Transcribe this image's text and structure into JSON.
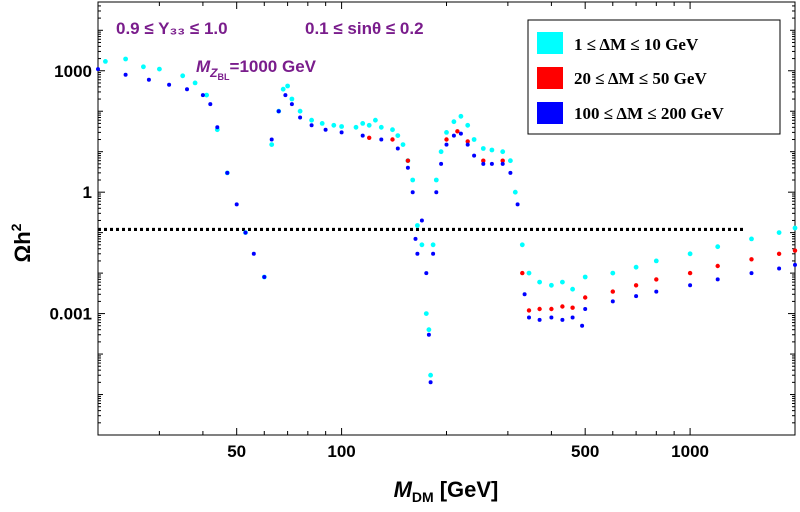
{
  "chart_data": {
    "type": "scatter",
    "title": "",
    "xlabel": "M",
    "xlabel_sub": "DM",
    "xlabel_unit": "[GeV]",
    "ylabel": "Ωh",
    "ylabel_sup": "2",
    "x_scale": "log",
    "y_scale": "log",
    "xlim": [
      20,
      2000
    ],
    "ylim": [
      1e-06,
      50000
    ],
    "x_ticks": [
      {
        "value": 50,
        "label": "50"
      },
      {
        "value": 100,
        "label": "100"
      },
      {
        "value": 500,
        "label": "500"
      },
      {
        "value": 1000,
        "label": "1000"
      }
    ],
    "y_ticks": [
      {
        "value": 1000,
        "label": "1000"
      },
      {
        "value": 1,
        "label": "1"
      },
      {
        "value": 0.001,
        "label": "0.001"
      }
    ],
    "reference_line": {
      "y": 0.12,
      "style": "dotted",
      "color": "#000000"
    },
    "annotations": {
      "line1_left": "0.9 ≤ Y₃₃ ≤ 1.0",
      "line1_right": "0.1 ≤ sinθ ≤ 0.2",
      "line2_prefix": "M",
      "line2_sub": "Z",
      "line2_subsub": "BL",
      "line2_value": "=1000 GeV",
      "color": "#7a1d8c"
    },
    "legend_position": "top-right",
    "series": [
      {
        "name": "1 ≤ ΔM ≤ 10 GeV",
        "color": "#00ffff",
        "points": [
          [
            21,
            1700
          ],
          [
            24,
            1950
          ],
          [
            27,
            1250
          ],
          [
            30,
            1100
          ],
          [
            35,
            750
          ],
          [
            38,
            500
          ],
          [
            41,
            250
          ],
          [
            44,
            35
          ],
          [
            47,
            3
          ],
          [
            53,
            0.1
          ],
          [
            60,
            0.008
          ],
          [
            63,
            15
          ],
          [
            66,
            100
          ],
          [
            68,
            350
          ],
          [
            70,
            420
          ],
          [
            72,
            200
          ],
          [
            76,
            100
          ],
          [
            82,
            60
          ],
          [
            88,
            50
          ],
          [
            95,
            45
          ],
          [
            100,
            42
          ],
          [
            110,
            40
          ],
          [
            115,
            50
          ],
          [
            120,
            45
          ],
          [
            125,
            60
          ],
          [
            130,
            40
          ],
          [
            140,
            35
          ],
          [
            145,
            25
          ],
          [
            150,
            15
          ],
          [
            155,
            6
          ],
          [
            160,
            2
          ],
          [
            165,
            0.15
          ],
          [
            170,
            0.05
          ],
          [
            175,
            0.001
          ],
          [
            178,
            0.0004
          ],
          [
            180,
            3e-05
          ],
          [
            183,
            0.05
          ],
          [
            187,
            2
          ],
          [
            193,
            10
          ],
          [
            200,
            30
          ],
          [
            210,
            55
          ],
          [
            220,
            75
          ],
          [
            230,
            45
          ],
          [
            240,
            20
          ],
          [
            255,
            12
          ],
          [
            270,
            11
          ],
          [
            290,
            10
          ],
          [
            305,
            6
          ],
          [
            315,
            1
          ],
          [
            330,
            0.05
          ],
          [
            345,
            0.01
          ],
          [
            370,
            0.006
          ],
          [
            400,
            0.005
          ],
          [
            430,
            0.006
          ],
          [
            460,
            0.004
          ],
          [
            500,
            0.008
          ],
          [
            600,
            0.01
          ],
          [
            700,
            0.014
          ],
          [
            800,
            0.02
          ],
          [
            1000,
            0.03
          ],
          [
            1200,
            0.045
          ],
          [
            1500,
            0.07
          ],
          [
            1800,
            0.1
          ],
          [
            2000,
            0.13
          ]
        ]
      },
      {
        "name": "20 ≤ ΔM ≤ 50 GeV",
        "color": "#ff0000",
        "points": [
          [
            120,
            22
          ],
          [
            140,
            20
          ],
          [
            155,
            6
          ],
          [
            200,
            20
          ],
          [
            215,
            32
          ],
          [
            230,
            18
          ],
          [
            255,
            6
          ],
          [
            290,
            6
          ],
          [
            330,
            0.01
          ],
          [
            345,
            0.0012
          ],
          [
            370,
            0.0013
          ],
          [
            400,
            0.0013
          ],
          [
            430,
            0.0015
          ],
          [
            460,
            0.0014
          ],
          [
            500,
            0.0025
          ],
          [
            600,
            0.0035
          ],
          [
            700,
            0.005
          ],
          [
            800,
            0.007
          ],
          [
            1000,
            0.01
          ],
          [
            1200,
            0.015
          ],
          [
            1500,
            0.022
          ],
          [
            1800,
            0.03
          ],
          [
            2000,
            0.036
          ]
        ]
      },
      {
        "name": "100 ≤ ΔM ≤ 200 GeV",
        "color": "#0000ff",
        "points": [
          [
            20,
            1100
          ],
          [
            24,
            800
          ],
          [
            28,
            600
          ],
          [
            32,
            450
          ],
          [
            36,
            350
          ],
          [
            40,
            250
          ],
          [
            42,
            150
          ],
          [
            44,
            40
          ],
          [
            47,
            3
          ],
          [
            50,
            0.5
          ],
          [
            53,
            0.1
          ],
          [
            56,
            0.03
          ],
          [
            60,
            0.008
          ],
          [
            63,
            20
          ],
          [
            66,
            100
          ],
          [
            69,
            250
          ],
          [
            72,
            150
          ],
          [
            76,
            70
          ],
          [
            82,
            45
          ],
          [
            90,
            35
          ],
          [
            100,
            30
          ],
          [
            115,
            25
          ],
          [
            130,
            20
          ],
          [
            145,
            12
          ],
          [
            155,
            4
          ],
          [
            160,
            1
          ],
          [
            163,
            0.07
          ],
          [
            165,
            0.03
          ],
          [
            170,
            0.2
          ],
          [
            175,
            0.01
          ],
          [
            178,
            0.0003
          ],
          [
            180,
            2e-05
          ],
          [
            183,
            0.03
          ],
          [
            187,
            1
          ],
          [
            193,
            5
          ],
          [
            200,
            15
          ],
          [
            210,
            25
          ],
          [
            220,
            28
          ],
          [
            230,
            15
          ],
          [
            240,
            8
          ],
          [
            255,
            5
          ],
          [
            270,
            5
          ],
          [
            290,
            5
          ],
          [
            305,
            3
          ],
          [
            320,
            0.5
          ],
          [
            335,
            0.003
          ],
          [
            345,
            0.0008
          ],
          [
            370,
            0.0007
          ],
          [
            400,
            0.0008
          ],
          [
            430,
            0.0007
          ],
          [
            460,
            0.0008
          ],
          [
            490,
            0.0005
          ],
          [
            500,
            0.0013
          ],
          [
            600,
            0.002
          ],
          [
            700,
            0.0027
          ],
          [
            800,
            0.0035
          ],
          [
            1000,
            0.005
          ],
          [
            1200,
            0.007
          ],
          [
            1500,
            0.01
          ],
          [
            1800,
            0.013
          ],
          [
            2000,
            0.016
          ]
        ]
      }
    ]
  }
}
